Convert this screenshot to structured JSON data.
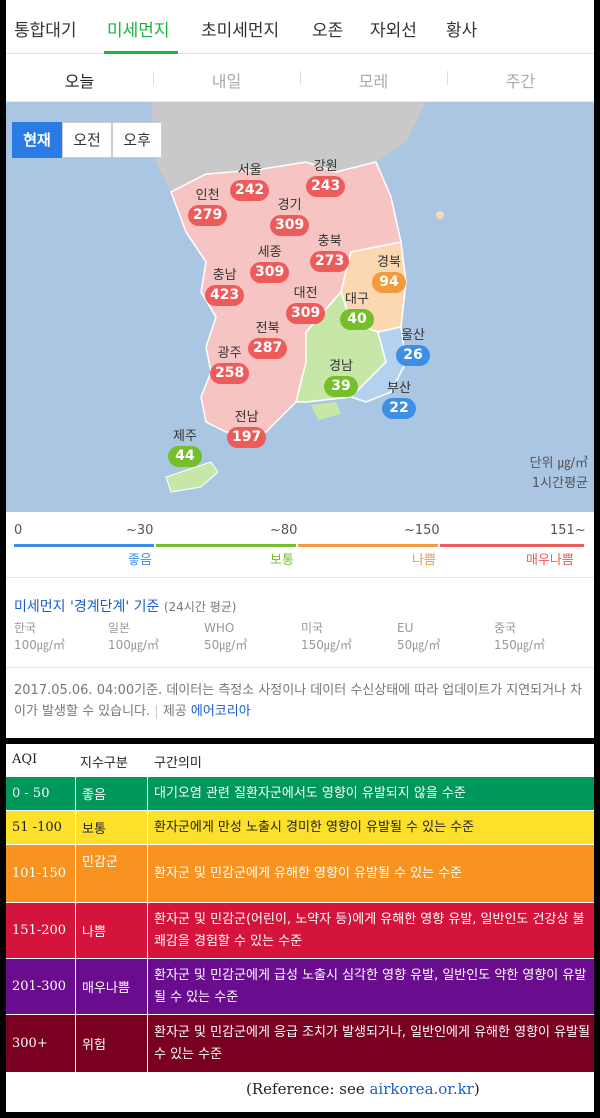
{
  "main_tabs": [
    "통합대기",
    "미세먼지",
    "초미세먼지",
    "오존",
    "자외선",
    "황사"
  ],
  "day_tabs": [
    "오늘",
    "내일",
    "모레",
    "주간"
  ],
  "time_buttons": [
    "현재",
    "오전",
    "오후"
  ],
  "regions": {
    "seoul": {
      "name": "서울",
      "value": "242"
    },
    "gangwon": {
      "name": "강원",
      "value": "243"
    },
    "incheon": {
      "name": "인천",
      "value": "279"
    },
    "gyeonggi": {
      "name": "경기",
      "value": "309"
    },
    "chungbuk": {
      "name": "충북",
      "value": "273"
    },
    "sejong": {
      "name": "세종",
      "value": "309"
    },
    "gyeongbuk": {
      "name": "경북",
      "value": "94"
    },
    "chungnam": {
      "name": "충남",
      "value": "423"
    },
    "daejeon": {
      "name": "대전",
      "value": "309"
    },
    "daegu": {
      "name": "대구",
      "value": "40"
    },
    "jeonbuk": {
      "name": "전북",
      "value": "287"
    },
    "ulsan": {
      "name": "울산",
      "value": "26"
    },
    "gwangju": {
      "name": "광주",
      "value": "258"
    },
    "gyeongnam": {
      "name": "경남",
      "value": "39"
    },
    "busan": {
      "name": "부산",
      "value": "22"
    },
    "jeonnam": {
      "name": "전남",
      "value": "197"
    },
    "jeju": {
      "name": "제주",
      "value": "44"
    }
  },
  "unit": {
    "line1": "단위 ㎍/㎥",
    "line2": "1시간평균"
  },
  "scale": {
    "numbers": [
      "0",
      "~30",
      "~80",
      "~150",
      "151~"
    ],
    "labels": [
      "좋음",
      "보통",
      "나쁨",
      "매우나쁨"
    ],
    "colors": [
      "#3d8fe6",
      "#76be2c",
      "#f29a3c",
      "#ee5b5b"
    ]
  },
  "standards": {
    "title": "미세먼지 '경계단계' 기준",
    "subtitle": "(24시간 평균)",
    "items": [
      {
        "name": "한국",
        "value": "100㎍/㎥"
      },
      {
        "name": "일본",
        "value": "100㎍/㎥"
      },
      {
        "name": "WHO",
        "value": "50㎍/㎥"
      },
      {
        "name": "미국",
        "value": "150㎍/㎥"
      },
      {
        "name": "EU",
        "value": "50㎍/㎥"
      },
      {
        "name": "중국",
        "value": "150㎍/㎥"
      }
    ]
  },
  "footer": {
    "text": "2017.05.06. 04:00기준. 데이터는 측정소 사정이나 데이터 수신상태에 따라 업데이트가 지연되거나 차이가 발생할 수 있습니다.",
    "sep": "|",
    "provider_label": "제공",
    "provider": "에어코리아"
  },
  "aqi_table": {
    "headers": [
      "AQI",
      "지수구분",
      "구간의미"
    ],
    "rows": [
      {
        "range": "0 - 50",
        "grade": "좋음",
        "meaning": "대기오염 관련 질환자군에서도 영향이 유발되지 않을 수준",
        "color": "#00975a",
        "text_color": "#ffffff"
      },
      {
        "range": "51 -100",
        "grade": "보통",
        "meaning": "환자군에게 만성 노출시 경미한 영향이 유발될 수 있는 수준",
        "color": "#fde02a",
        "text_color": "#222222"
      },
      {
        "range": "101-150",
        "grade": "민감군",
        "meaning": "환자군 및 민감군에게 유해한 영향이 유발될 수 있는 수준",
        "color": "#f7931e",
        "text_color": "#ffffff"
      },
      {
        "range": "151-200",
        "grade": "나쁨",
        "meaning": "환자군 및 민감군(어린이, 노약자 등)에게 유해한 영향 유발, 일반인도 건강상 불쾌감을 경험할 수 있는 수준",
        "color": "#d4143b",
        "text_color": "#ffffff"
      },
      {
        "range": "201-300",
        "grade": "매우나쁨",
        "meaning": "환자군 및 민감군에게 급성 노출시 심각한 영향 유발, 일반인도 약한 영향이 유발될 수 있는 수준",
        "color": "#6a0c8e",
        "text_color": "#ffffff"
      },
      {
        "range": "300+",
        "grade": "위험",
        "meaning": "환자군 및 민감군에게 응급 조치가 발생되거나, 일반인에게 유해한 영향이 유발될 수 있는 수준",
        "color": "#7a0021",
        "text_color": "#ffffff"
      }
    ],
    "reference_prefix": "(Reference: see ",
    "reference_link": "airkorea.or.kr",
    "reference_suffix": ")"
  }
}
